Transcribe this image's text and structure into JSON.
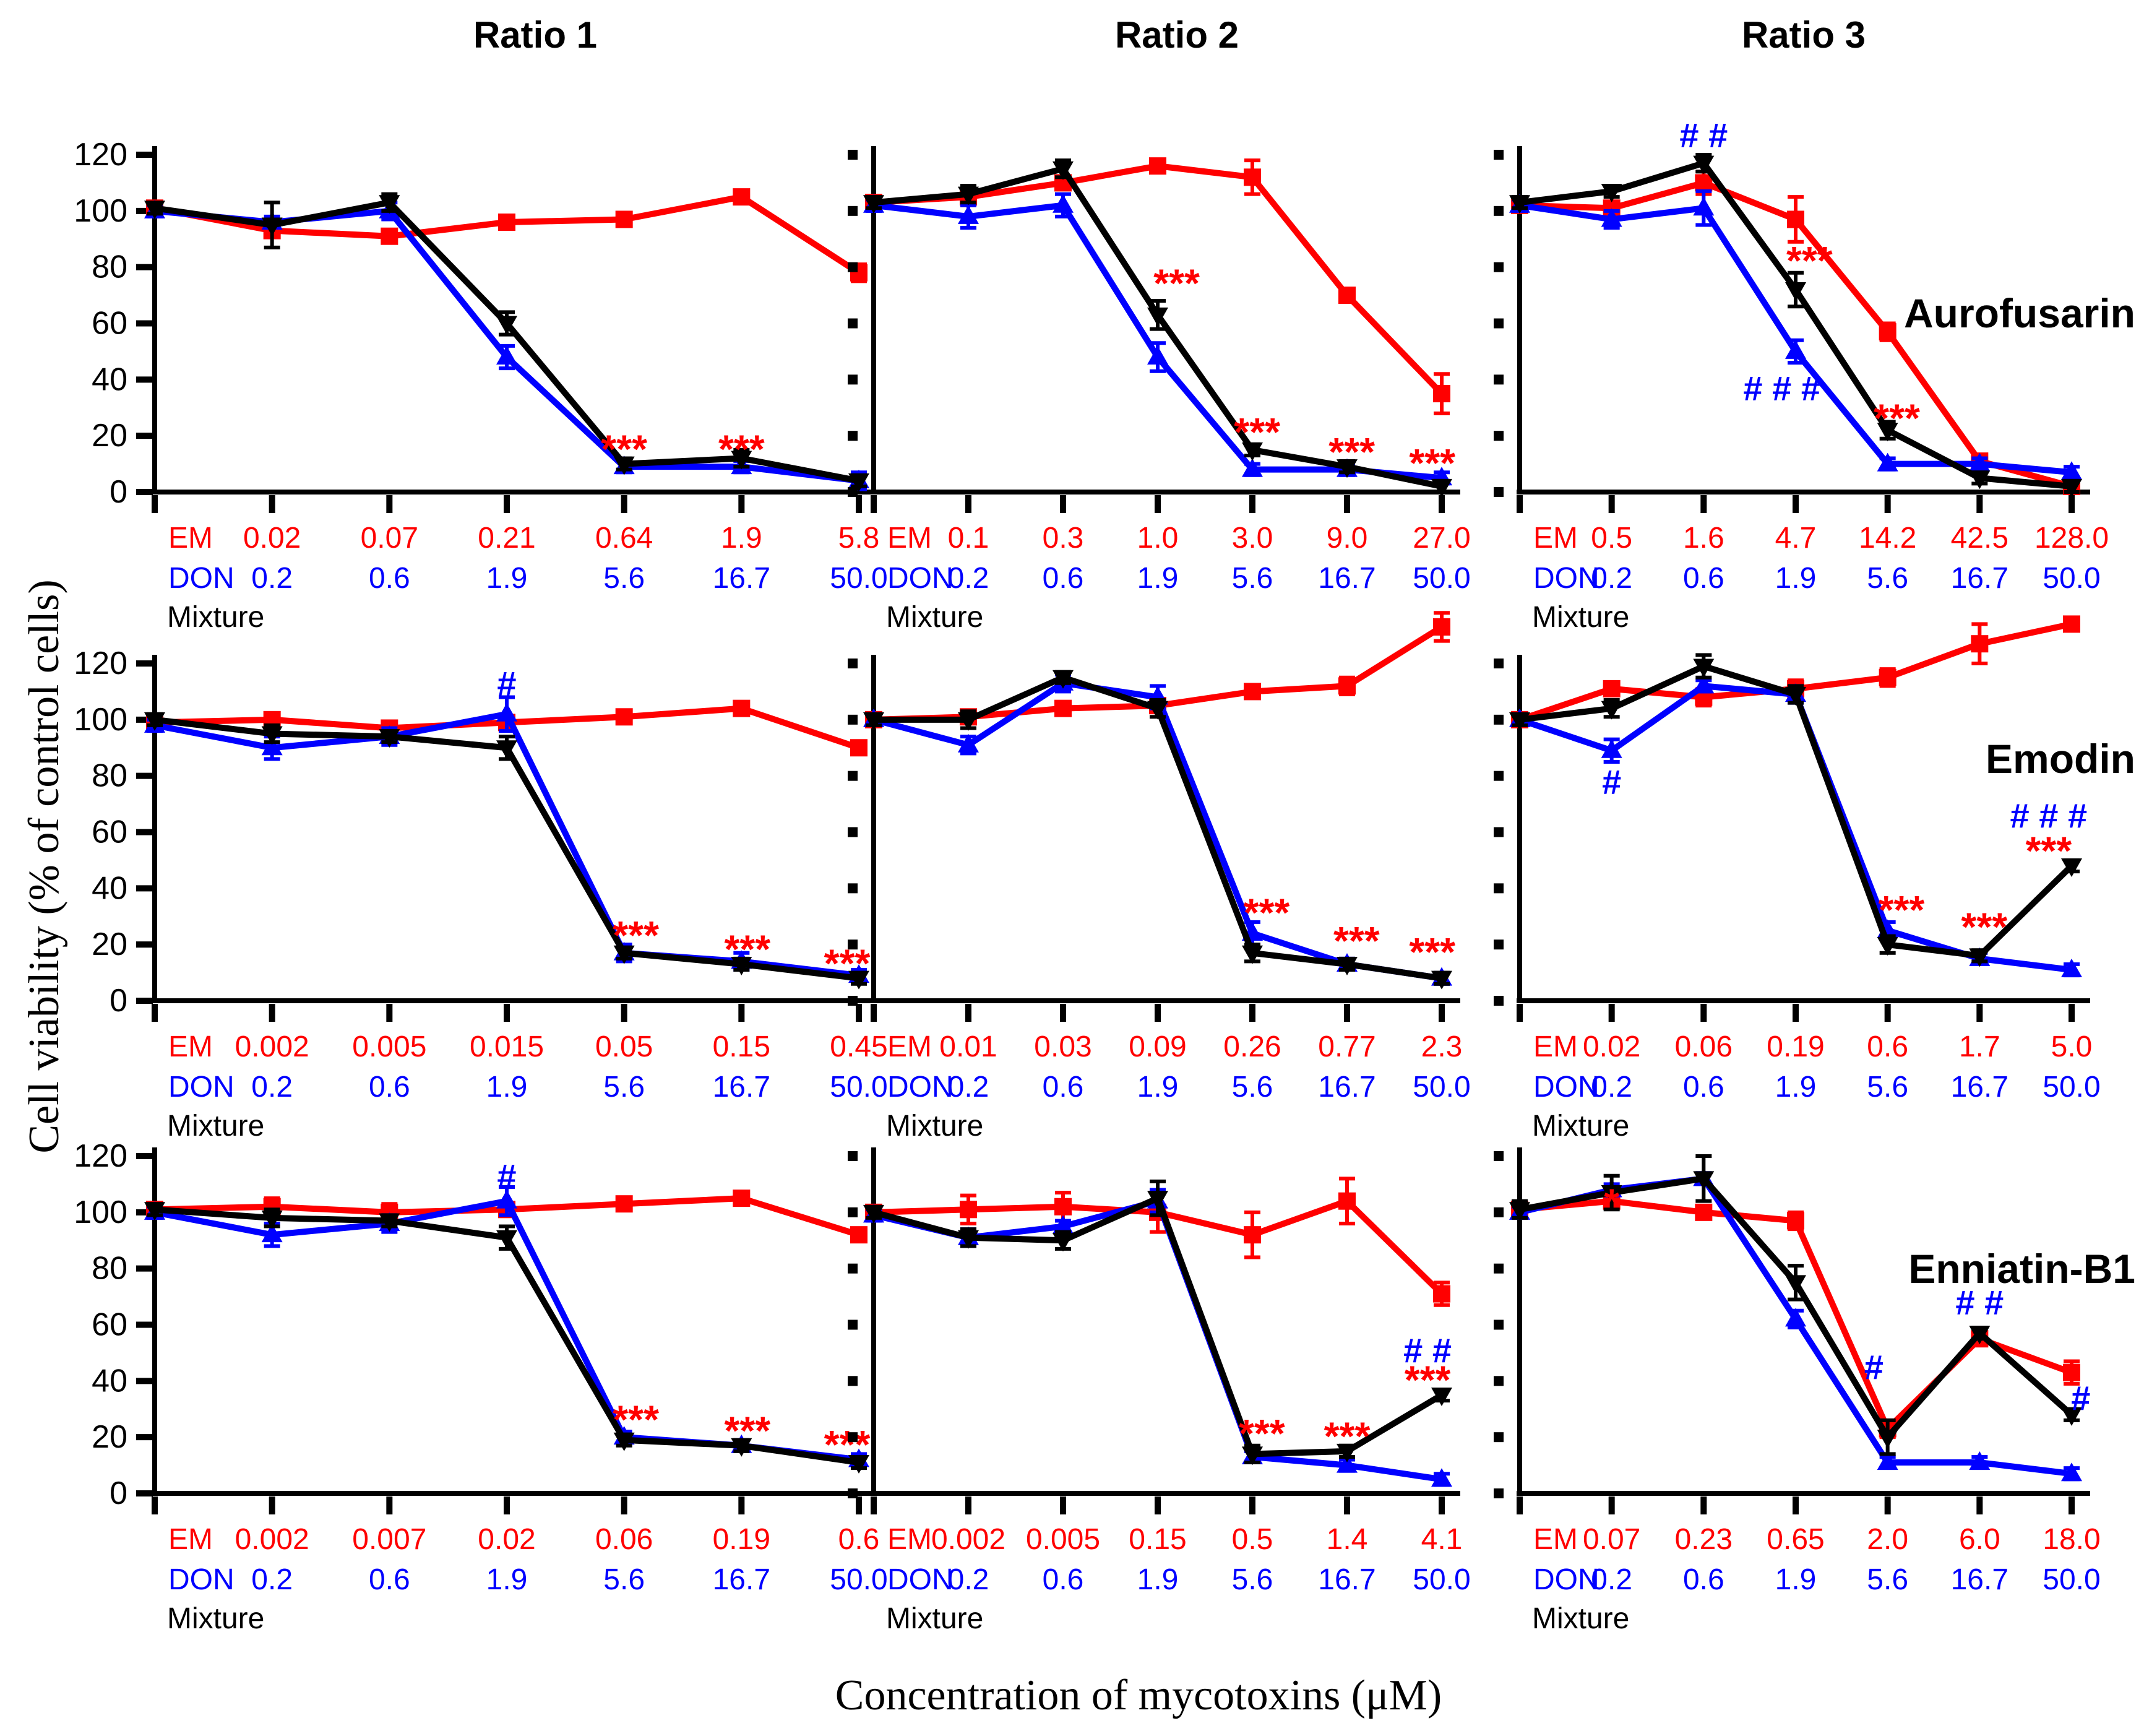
{
  "page": {
    "column_headers": [
      "Ratio 1",
      "Ratio 2",
      "Ratio 3"
    ],
    "row_titles": [
      "Aurofusarin",
      "Emodin",
      "Enniatin-B1"
    ],
    "y_axis_title": "Cell viability (% of control cells)",
    "x_axis_title": "Concentration of mycotoxins (μM)"
  },
  "chart_data": {
    "type": "line",
    "ylim": [
      0,
      120
    ],
    "yticks": [
      0,
      20,
      40,
      60,
      80,
      100,
      120
    ],
    "grid": false,
    "legend_position": "none",
    "x_row_names": [
      "EM",
      "DON",
      "Mixture"
    ],
    "series_legend": [
      {
        "name": "EM",
        "color": "#FF0000",
        "marker": "square"
      },
      {
        "name": "DON",
        "color": "#0000FF",
        "marker": "triangle-up"
      },
      {
        "name": "Mixture",
        "color": "#000000",
        "marker": "triangle-down"
      }
    ],
    "don_labels": [
      "0.2",
      "0.6",
      "1.9",
      "5.6",
      "16.7",
      "50.0"
    ],
    "charts": [
      {
        "row": "Aurofusarin",
        "col": "Ratio 1",
        "em_labels": [
          "0.02",
          "0.07",
          "0.21",
          "0.64",
          "1.9",
          "5.8"
        ],
        "don_labels": [
          "0.2",
          "0.6",
          "1.9",
          "5.6",
          "16.7",
          "50.0"
        ],
        "em": [
          101,
          93,
          91,
          96,
          97,
          105,
          78
        ],
        "em_err": [
          2,
          2,
          2,
          2,
          2,
          2,
          3
        ],
        "don": [
          100,
          96,
          100,
          48,
          9,
          9,
          4
        ],
        "don_err": [
          2,
          2,
          3,
          4,
          2,
          2,
          3
        ],
        "mix": [
          101,
          95,
          103,
          60,
          10,
          12,
          4
        ],
        "mix_err": [
          2,
          8,
          3,
          4,
          2,
          3,
          2
        ],
        "annotations": [
          {
            "text": "***",
            "x": 4.0,
            "y": 18,
            "color": "#FF0000"
          },
          {
            "text": "***",
            "x": 5.0,
            "y": 18,
            "color": "#FF0000"
          }
        ]
      },
      {
        "row": "Aurofusarin",
        "col": "Ratio 2",
        "em_labels": [
          "0.1",
          "0.3",
          "1.0",
          "3.0",
          "9.0",
          "27.0"
        ],
        "don_labels": [
          "0.2",
          "0.6",
          "1.9",
          "5.6",
          "16.7",
          "50.0"
        ],
        "em": [
          103,
          105,
          110,
          116,
          112,
          70,
          35
        ],
        "em_err": [
          2,
          3,
          2,
          2,
          6,
          2,
          7
        ],
        "don": [
          102,
          98,
          102,
          48,
          8,
          8,
          5
        ],
        "don_err": [
          2,
          4,
          4,
          5,
          2,
          2,
          2
        ],
        "mix": [
          103,
          106,
          115,
          63,
          15,
          9,
          2
        ],
        "mix_err": [
          2,
          3,
          3,
          5,
          2,
          2,
          2
        ],
        "annotations": [
          {
            "text": "***",
            "x": 3.2,
            "y": 77,
            "color": "#FF0000"
          },
          {
            "text": "***",
            "x": 4.05,
            "y": 24,
            "color": "#FF0000"
          },
          {
            "text": "***",
            "x": 5.05,
            "y": 17,
            "color": "#FF0000"
          },
          {
            "text": "***",
            "x": 5.9,
            "y": 13,
            "color": "#FF0000"
          }
        ]
      },
      {
        "row": "Aurofusarin",
        "col": "Ratio 3",
        "em_labels": [
          "0.5",
          "1.6",
          "4.7",
          "14.2",
          "42.5",
          "128.0"
        ],
        "don_labels": [
          "0.2",
          "0.6",
          "1.9",
          "5.6",
          "16.7",
          "50.0"
        ],
        "em": [
          102,
          101,
          110,
          97,
          57,
          11,
          2
        ],
        "em_err": [
          2,
          2,
          4,
          8,
          3,
          2,
          2
        ],
        "don": [
          102,
          97,
          101,
          50,
          10,
          10,
          7
        ],
        "don_err": [
          2,
          3,
          6,
          4,
          2,
          2,
          2
        ],
        "mix": [
          103,
          107,
          117,
          72,
          22,
          5,
          2
        ],
        "mix_err": [
          2,
          2,
          3,
          6,
          3,
          2,
          2
        ],
        "annotations": [
          {
            "text": "# #",
            "x": 2.0,
            "y": 127,
            "color": "#0000FF"
          },
          {
            "text": "***",
            "x": 3.15,
            "y": 85,
            "color": "#FF0000"
          },
          {
            "text": "# # #",
            "x": 2.85,
            "y": 37,
            "color": "#0000FF"
          },
          {
            "text": "***",
            "x": 4.1,
            "y": 29,
            "color": "#FF0000"
          }
        ]
      },
      {
        "row": "Emodin",
        "col": "Ratio 1",
        "em_labels": [
          "0.002",
          "0.005",
          "0.015",
          "0.05",
          "0.15",
          "0.45"
        ],
        "don_labels": [
          "0.2",
          "0.6",
          "1.9",
          "5.6",
          "16.7",
          "50.0"
        ],
        "em": [
          99,
          100,
          97,
          99,
          101,
          104,
          90
        ],
        "em_err": [
          2,
          2,
          2,
          2,
          2,
          2,
          2
        ],
        "don": [
          98,
          90,
          94,
          102,
          17,
          14,
          9
        ],
        "don_err": [
          2,
          4,
          3,
          6,
          3,
          3,
          2
        ],
        "mix": [
          100,
          95,
          94,
          90,
          17,
          13,
          8
        ],
        "mix_err": [
          2,
          3,
          2,
          4,
          2,
          2,
          2
        ],
        "annotations": [
          {
            "text": "#",
            "x": 3.0,
            "y": 113,
            "color": "#0000FF"
          },
          {
            "text": "***",
            "x": 4.1,
            "y": 26,
            "color": "#FF0000"
          },
          {
            "text": "***",
            "x": 5.05,
            "y": 21,
            "color": "#FF0000"
          },
          {
            "text": "***",
            "x": 5.9,
            "y": 16,
            "color": "#FF0000"
          }
        ]
      },
      {
        "row": "Emodin",
        "col": "Ratio 2",
        "em_labels": [
          "0.01",
          "0.03",
          "0.09",
          "0.26",
          "0.77",
          "2.3"
        ],
        "don_labels": [
          "0.2",
          "0.6",
          "1.9",
          "5.6",
          "16.7",
          "50.0"
        ],
        "em": [
          100,
          101,
          104,
          105,
          110,
          112,
          133
        ],
        "em_err": [
          2,
          2,
          2,
          2,
          2,
          3,
          5
        ],
        "don": [
          100,
          91,
          113,
          108,
          24,
          13,
          8
        ],
        "don_err": [
          2,
          3,
          3,
          4,
          4,
          2,
          2
        ],
        "mix": [
          100,
          100,
          115,
          104,
          17,
          13,
          8
        ],
        "mix_err": [
          2,
          3,
          2,
          3,
          3,
          2,
          2
        ],
        "annotations": [
          {
            "text": "***",
            "x": 4.15,
            "y": 34,
            "color": "#FF0000"
          },
          {
            "text": "***",
            "x": 5.1,
            "y": 24,
            "color": "#FF0000"
          },
          {
            "text": "***",
            "x": 5.9,
            "y": 20,
            "color": "#FF0000"
          }
        ]
      },
      {
        "row": "Emodin",
        "col": "Ratio 3",
        "em_labels": [
          "0.02",
          "0.06",
          "0.19",
          "0.6",
          "1.7",
          "5.0"
        ],
        "don_labels": [
          "0.2",
          "0.6",
          "1.9",
          "5.6",
          "16.7",
          "50.0"
        ],
        "em": [
          100,
          111,
          108,
          111,
          115,
          127,
          134
        ],
        "em_err": [
          2,
          2,
          3,
          3,
          3,
          7,
          2
        ],
        "don": [
          100,
          89,
          112,
          109,
          25,
          15,
          11
        ],
        "don_err": [
          2,
          4,
          2,
          3,
          3,
          2,
          2
        ],
        "mix": [
          100,
          104,
          119,
          109,
          20,
          16,
          48
        ],
        "mix_err": [
          2,
          3,
          4,
          3,
          3,
          2,
          2
        ],
        "annotations": [
          {
            "text": "#",
            "x": 1.0,
            "y": 78,
            "color": "#0000FF"
          },
          {
            "text": "***",
            "x": 4.15,
            "y": 35,
            "color": "#FF0000"
          },
          {
            "text": "***",
            "x": 5.05,
            "y": 29,
            "color": "#FF0000"
          },
          {
            "text": "# # #",
            "x": 5.75,
            "y": 66,
            "color": "#0000FF"
          },
          {
            "text": "***",
            "x": 5.75,
            "y": 56,
            "color": "#FF0000"
          }
        ]
      },
      {
        "row": "Enniatin-B1",
        "col": "Ratio 1",
        "em_labels": [
          "0.002",
          "0.007",
          "0.02",
          "0.06",
          "0.19",
          "0.6"
        ],
        "don_labels": [
          "0.2",
          "0.6",
          "1.9",
          "5.6",
          "16.7",
          "50.0"
        ],
        "em": [
          101,
          102,
          100,
          101,
          103,
          105,
          92
        ],
        "em_err": [
          2,
          3,
          3,
          2,
          2,
          2,
          2
        ],
        "don": [
          100,
          92,
          96,
          104,
          20,
          17,
          12
        ],
        "don_err": [
          2,
          4,
          3,
          5,
          2,
          2,
          2
        ],
        "mix": [
          101,
          98,
          97,
          91,
          19,
          17,
          11
        ],
        "mix_err": [
          2,
          3,
          2,
          4,
          2,
          2,
          2
        ],
        "annotations": [
          {
            "text": "#",
            "x": 3.0,
            "y": 113,
            "color": "#0000FF"
          },
          {
            "text": "***",
            "x": 4.1,
            "y": 29,
            "color": "#FF0000"
          },
          {
            "text": "***",
            "x": 5.05,
            "y": 25,
            "color": "#FF0000"
          },
          {
            "text": "***",
            "x": 5.9,
            "y": 20,
            "color": "#FF0000"
          }
        ]
      },
      {
        "row": "Enniatin-B1",
        "col": "Ratio 2",
        "em_labels": [
          "0.002",
          "0.005",
          "0.15",
          "0.5",
          "1.4",
          "4.1"
        ],
        "don_labels": [
          "0.2",
          "0.6",
          "1.9",
          "5.6",
          "16.7",
          "50.0"
        ],
        "em": [
          100,
          101,
          102,
          100,
          92,
          104,
          71
        ],
        "em_err": [
          2,
          5,
          5,
          7,
          8,
          8,
          4
        ],
        "don": [
          99,
          91,
          95,
          104,
          13,
          10,
          5
        ],
        "don_err": [
          2,
          3,
          2,
          4,
          2,
          2,
          2
        ],
        "mix": [
          100,
          91,
          90,
          105,
          14,
          15,
          35
        ],
        "mix_err": [
          2,
          3,
          3,
          6,
          3,
          2,
          2
        ],
        "annotations": [
          {
            "text": "***",
            "x": 4.1,
            "y": 24,
            "color": "#FF0000"
          },
          {
            "text": "***",
            "x": 5.0,
            "y": 23,
            "color": "#FF0000"
          },
          {
            "text": "# #",
            "x": 5.85,
            "y": 51,
            "color": "#0000FF"
          },
          {
            "text": "***",
            "x": 5.85,
            "y": 43,
            "color": "#FF0000"
          }
        ]
      },
      {
        "row": "Enniatin-B1",
        "col": "Ratio 3",
        "em_labels": [
          "0.07",
          "0.23",
          "0.65",
          "2.0",
          "6.0",
          "18.0"
        ],
        "don_labels": [
          "0.2",
          "0.6",
          "1.9",
          "5.6",
          "16.7",
          "50.0"
        ],
        "em": [
          101,
          104,
          100,
          97,
          23,
          55,
          43
        ],
        "em_err": [
          2,
          2,
          2,
          3,
          3,
          2,
          4
        ],
        "don": [
          100,
          108,
          112,
          62,
          11,
          11,
          7
        ],
        "don_err": [
          2,
          2,
          2,
          3,
          2,
          2,
          2
        ],
        "mix": [
          101,
          107,
          112,
          75,
          20,
          57,
          28
        ],
        "mix_err": [
          3,
          6,
          8,
          6,
          6,
          2,
          2
        ],
        "annotations": [
          {
            "text": "*",
            "x": 1.0,
            "y": 106,
            "color": "#FF0000"
          },
          {
            "text": "#",
            "x": 3.85,
            "y": 45,
            "color": "#0000FF"
          },
          {
            "text": "# #",
            "x": 5.0,
            "y": 68,
            "color": "#0000FF"
          },
          {
            "text": "#",
            "x": 6.1,
            "y": 34,
            "color": "#0000FF"
          }
        ]
      }
    ]
  }
}
